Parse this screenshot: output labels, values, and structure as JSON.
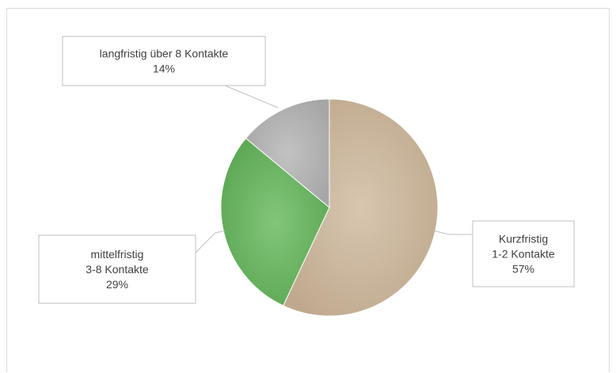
{
  "chart_data": {
    "type": "pie",
    "title": "",
    "slices": [
      {
        "label_lines": [
          "Kurzfristig",
          "1-2 Kontakte"
        ],
        "value": 57,
        "value_label": "57%",
        "color": "#c9b49b"
      },
      {
        "label_lines": [
          "mittelfristig",
          "3-8 Kontakte"
        ],
        "value": 29,
        "value_label": "29%",
        "color": "#6fb866"
      },
      {
        "label_lines": [
          "langfristig über 8 Kontakte"
        ],
        "value": 14,
        "value_label": "14%",
        "color": "#b3b3b3"
      }
    ],
    "legend": "none",
    "data_labels": "callouts"
  }
}
